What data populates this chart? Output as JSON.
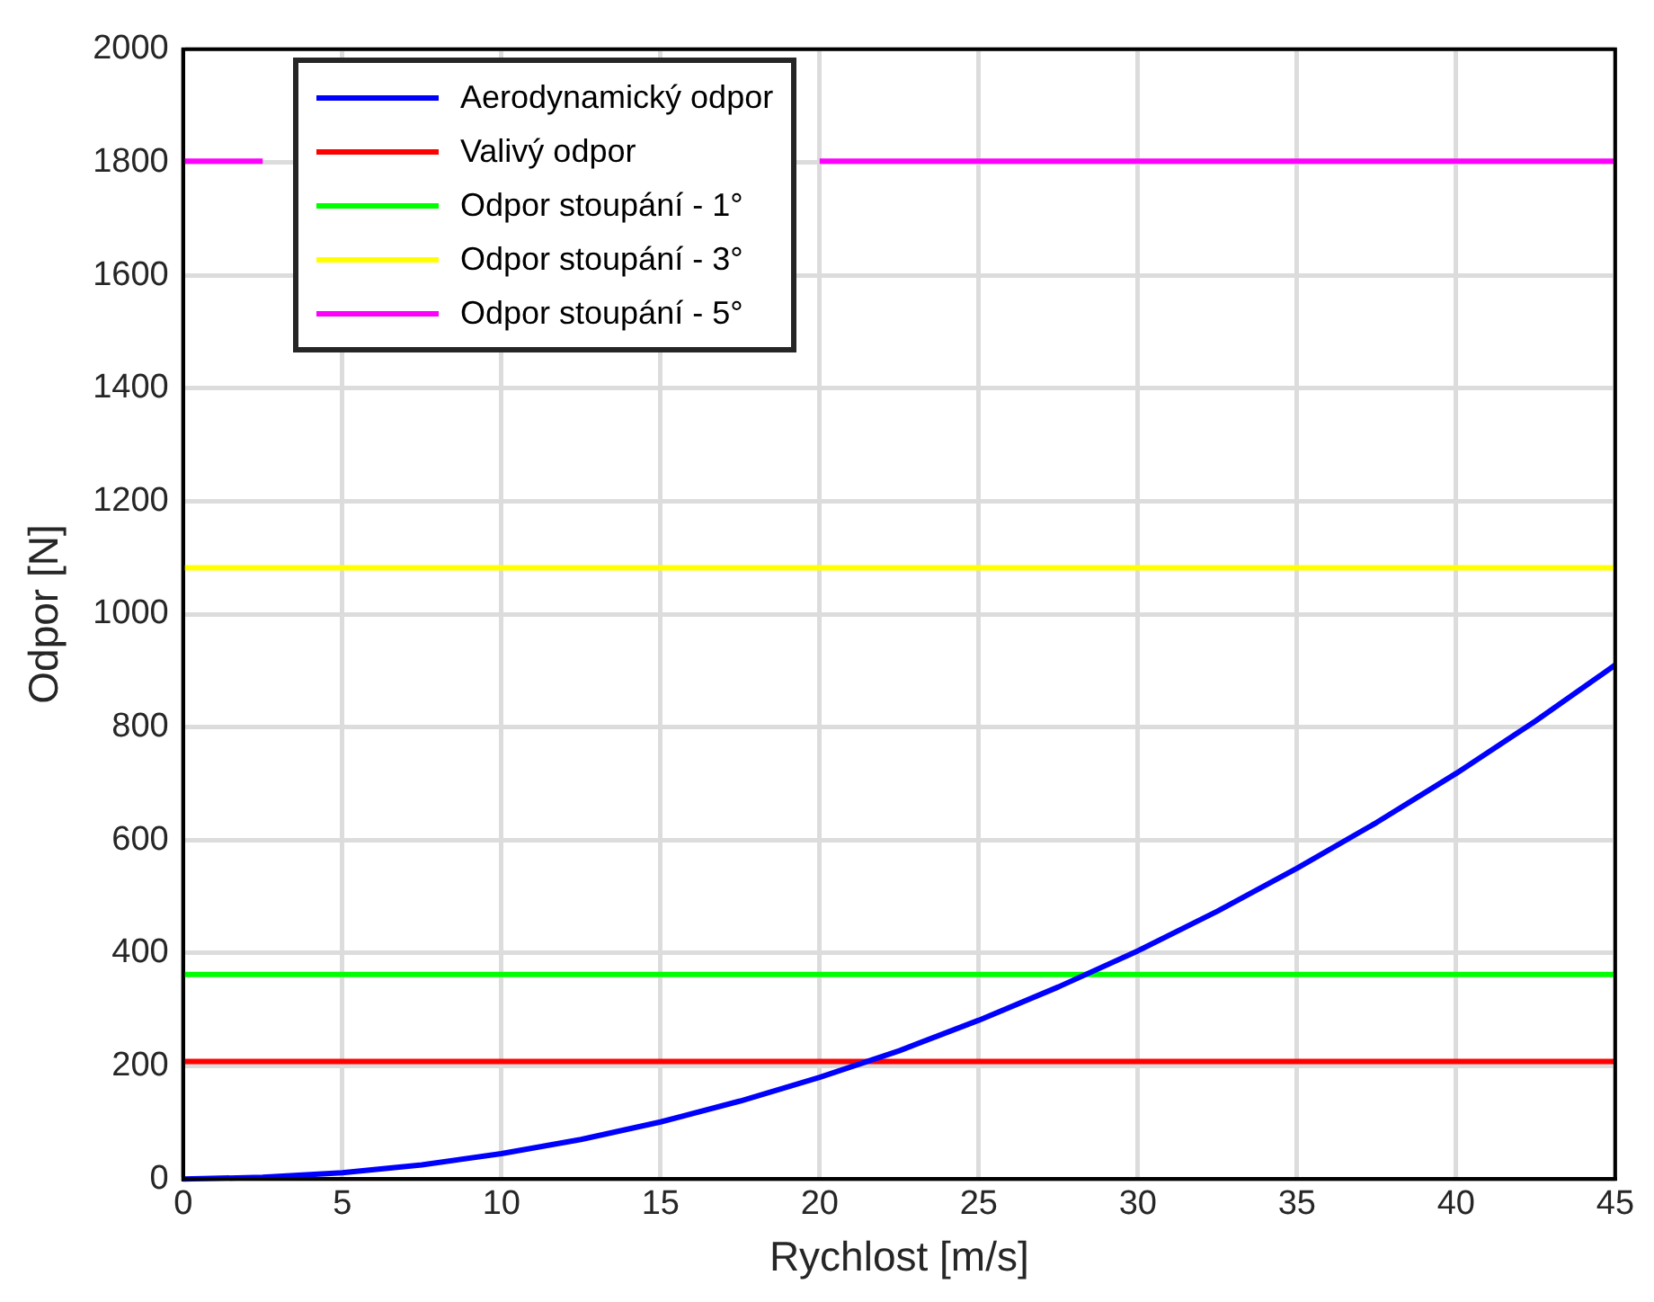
{
  "chart_data": {
    "type": "line",
    "xlabel": "Rychlost [m/s]",
    "ylabel": "Odpor [N]",
    "x": [
      0,
      2.5,
      5,
      7.5,
      10,
      12.5,
      15,
      17.5,
      20,
      22.5,
      25,
      27.5,
      30,
      32.5,
      35,
      37.5,
      40,
      42.5,
      45
    ],
    "series": [
      {
        "name": "Aerodynamický odpor",
        "color": "#0000ff",
        "values": [
          0,
          3,
          11,
          25,
          45,
          70,
          101,
          138,
          180,
          227,
          281,
          340,
          404,
          474,
          550,
          631,
          718,
          811,
          910
        ]
      },
      {
        "name": "Valivý odpor",
        "color": "#ff0000",
        "values": [
          208,
          208,
          208,
          208,
          208,
          208,
          208,
          208,
          208,
          208,
          208,
          208,
          208,
          208,
          208,
          208,
          208,
          208,
          208
        ]
      },
      {
        "name": "Odpor stoupání - 1°",
        "color": "#00ff00",
        "values": [
          362,
          362,
          362,
          362,
          362,
          362,
          362,
          362,
          362,
          362,
          362,
          362,
          362,
          362,
          362,
          362,
          362,
          362,
          362
        ]
      },
      {
        "name": "Odpor stoupání - 3°",
        "color": "#ffff00",
        "values": [
          1082,
          1082,
          1082,
          1082,
          1082,
          1082,
          1082,
          1082,
          1082,
          1082,
          1082,
          1082,
          1082,
          1082,
          1082,
          1082,
          1082,
          1082,
          1082
        ]
      },
      {
        "name": "Odpor stoupání - 5°",
        "color": "#ff00ff",
        "values": [
          1802,
          1802,
          null,
          null,
          null,
          null,
          null,
          null,
          1802,
          1802,
          1802,
          1802,
          1802,
          1802,
          1802,
          1802,
          1802,
          1802,
          1802
        ]
      }
    ],
    "xlim": [
      0,
      45
    ],
    "xticks": [
      0,
      5,
      10,
      15,
      20,
      25,
      30,
      35,
      40,
      45
    ],
    "ylim": [
      0,
      2000
    ],
    "yticks": [
      0,
      200,
      400,
      600,
      800,
      1000,
      1200,
      1400,
      1600,
      1800,
      2000
    ],
    "grid": true,
    "legend": "top left",
    "marker": "none",
    "line_style": "solid"
  }
}
